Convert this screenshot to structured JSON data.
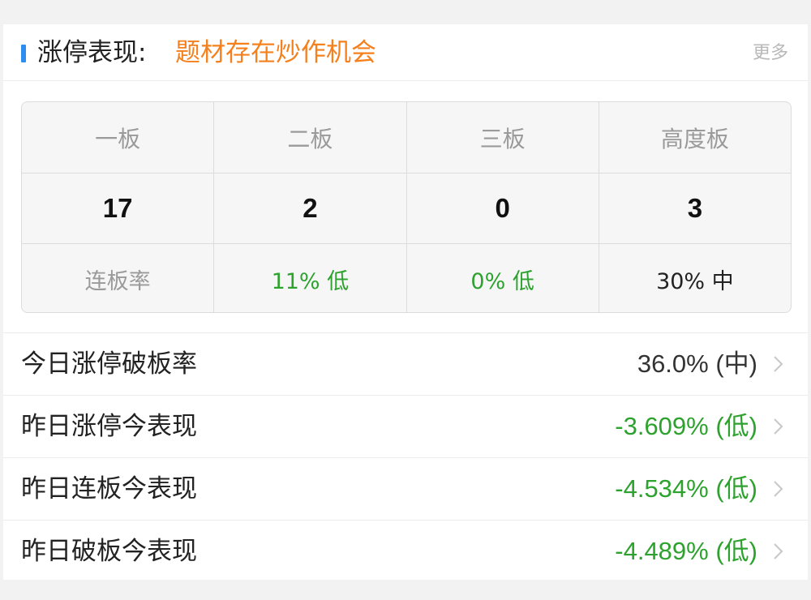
{
  "header": {
    "title": "涨停表现:",
    "highlight": "题材存在炒作机会",
    "more_label": "更多",
    "accent_color": "#2f8cf0",
    "highlight_color": "#f5801e"
  },
  "board_table": {
    "columns": [
      "一板",
      "二板",
      "三板",
      "高度板"
    ],
    "counts": [
      "17",
      "2",
      "0",
      "3"
    ],
    "rate_label": "连板率",
    "rates": [
      {
        "text": "11% 低",
        "level": "green"
      },
      {
        "text": "0% 低",
        "level": "green"
      },
      {
        "text": "30% 中",
        "level": "dark"
      }
    ]
  },
  "metrics": [
    {
      "label": "今日涨停破板率",
      "value": "36.0% (中)",
      "color": "#333333"
    },
    {
      "label": "昨日涨停今表现",
      "value": "-3.609% (低)",
      "color": "#2ea22e"
    },
    {
      "label": "昨日连板今表现",
      "value": "-4.534% (低)",
      "color": "#2ea22e"
    },
    {
      "label": "昨日破板今表现",
      "value": "-4.489% (低)",
      "color": "#2ea22e"
    }
  ]
}
